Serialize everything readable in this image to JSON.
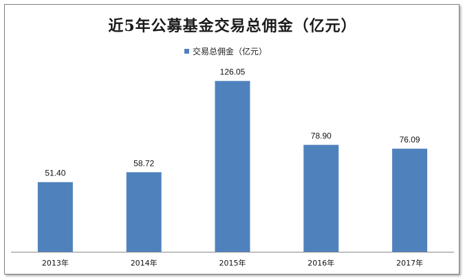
{
  "chart_data": {
    "type": "bar",
    "title": "近5年公募基金交易总佣金（亿元）",
    "legend_position": "top-center",
    "categories": [
      "2013年",
      "2014年",
      "2015年",
      "2016年",
      "2017年"
    ],
    "series": [
      {
        "name": "交易总佣金（亿元）",
        "values": [
          51.4,
          58.72,
          126.05,
          78.9,
          76.09
        ],
        "labels": [
          "51.40",
          "58.72",
          "126.05",
          "78.90",
          "76.09"
        ],
        "color": "#4f81bd"
      }
    ],
    "ylim": [
      0,
      140
    ],
    "grid": false,
    "xlabel": "",
    "ylabel": ""
  }
}
